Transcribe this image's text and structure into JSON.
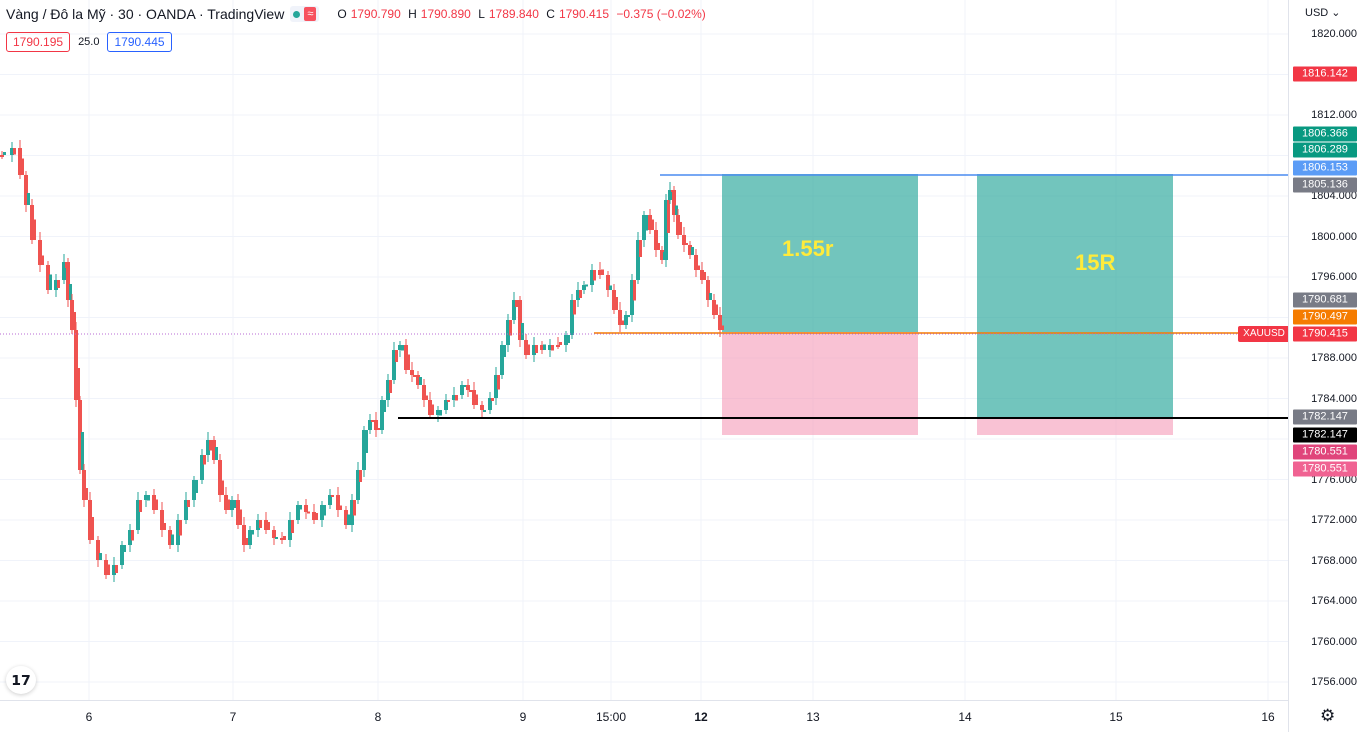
{
  "legend": {
    "symbol": "Vàng / Đô la Mỹ · 30 · OANDA · TradingView",
    "wave_icon": "≈",
    "open_key": "O",
    "open": "1790.790",
    "high_key": "H",
    "high": "1790.890",
    "low_key": "L",
    "low": "1789.840",
    "close_key": "C",
    "close": "1790.415",
    "change": "−0.375 (−0.02%)"
  },
  "quote": {
    "bid": "1790.195",
    "spread": "25.0",
    "ask": "1790.445"
  },
  "price_axis": {
    "currency": "USD",
    "ticks": [
      "1820.000",
      "1812.000",
      "1804.000",
      "1800.000",
      "1796.000",
      "1788.000",
      "1784.000",
      "1776.000",
      "1772.000",
      "1768.000",
      "1764.000",
      "1760.000",
      "1756.000"
    ],
    "tags": [
      {
        "text": "1816.142",
        "color": "#f23645"
      },
      {
        "text": "1806.366",
        "color": "#089981"
      },
      {
        "text": "1806.289",
        "color": "#089981"
      },
      {
        "text": "1806.153",
        "color": "#5b9cf6"
      },
      {
        "text": "1805.136",
        "color": "#787b86"
      },
      {
        "text": "1790.681",
        "color": "#787b86"
      },
      {
        "text": "1790.497",
        "color": "#f57c00"
      },
      {
        "text": "1790.415",
        "color": "#f23645"
      },
      {
        "text": "1782.147",
        "color": "#787b86"
      },
      {
        "text": "1782.147",
        "color": "#000000"
      },
      {
        "text": "1780.551",
        "color": "#e0457b"
      },
      {
        "text": "1780.551",
        "color": "#f06292"
      }
    ],
    "symbol_tag": "XAUUSD"
  },
  "time_axis": {
    "labels": [
      {
        "text": "6",
        "bold": false
      },
      {
        "text": "7",
        "bold": false
      },
      {
        "text": "8",
        "bold": false
      },
      {
        "text": "9",
        "bold": false
      },
      {
        "text": "15:00",
        "bold": false
      },
      {
        "text": "12",
        "bold": true
      },
      {
        "text": "13",
        "bold": false
      },
      {
        "text": "14",
        "bold": false
      },
      {
        "text": "15",
        "bold": false
      },
      {
        "text": "16",
        "bold": false
      }
    ]
  },
  "drawings": {
    "box1_label": "1.55r",
    "box2_label": "15R"
  },
  "colors": {
    "up": "#26a69a",
    "down": "#ef5350",
    "target_zone": "#26a69a",
    "stop_zone": "#f8bbd0"
  },
  "icons": {
    "logo": "tradingview-logo",
    "settings": "gear-icon"
  }
}
